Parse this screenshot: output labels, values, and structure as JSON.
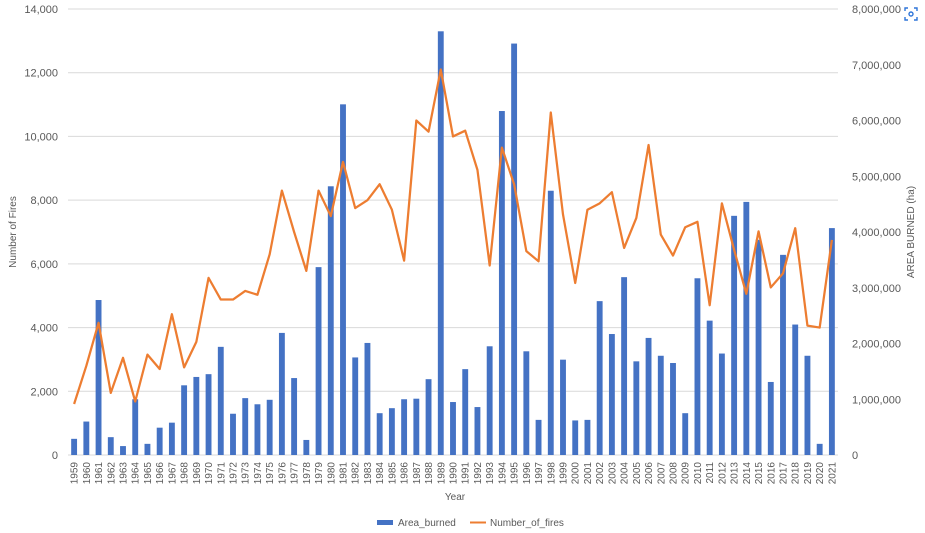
{
  "chart_data": {
    "type": "bar",
    "title": "",
    "xlabel": "Year",
    "ylabel": "Number of Fires",
    "y2label": "AREA BURNED (ha)",
    "ylim": [
      0,
      14000
    ],
    "y2lim": [
      0,
      8000000
    ],
    "yticks": [
      "0",
      "2,000",
      "4,000",
      "6,000",
      "8,000",
      "10,000",
      "12,000",
      "14,000"
    ],
    "y2ticks": [
      "0",
      "1,000,000",
      "2,000,000",
      "3,000,000",
      "4,000,000",
      "5,000,000",
      "6,000,000",
      "7,000,000",
      "8,000,000"
    ],
    "grid": true,
    "legend_position": "bottom",
    "categories": [
      "1959",
      "1960",
      "1961",
      "1962",
      "1963",
      "1964",
      "1965",
      "1966",
      "1967",
      "1968",
      "1969",
      "1970",
      "1971",
      "1972",
      "1973",
      "1974",
      "1975",
      "1976",
      "1977",
      "1978",
      "1979",
      "1980",
      "1981",
      "1982",
      "1983",
      "1984",
      "1985",
      "1986",
      "1987",
      "1988",
      "1989",
      "1990",
      "1991",
      "1992",
      "1993",
      "1994",
      "1995",
      "1996",
      "1997",
      "1998",
      "1999",
      "2000",
      "2001",
      "2002",
      "2003",
      "2004",
      "2005",
      "2006",
      "2007",
      "2008",
      "2009",
      "2010",
      "2011",
      "2012",
      "2013",
      "2014",
      "2015",
      "2016",
      "2017",
      "2018",
      "2019",
      "2020",
      "2021"
    ],
    "series": [
      {
        "name": "Area_burned",
        "type": "bar",
        "axis": "secondary",
        "color": "#4472C4",
        "values": [
          290000,
          600000,
          2780000,
          320000,
          160000,
          1000000,
          200000,
          490000,
          580000,
          1250000,
          1400000,
          1450000,
          1940000,
          740000,
          1020000,
          910000,
          990000,
          2190000,
          1380000,
          270000,
          3370000,
          4820000,
          6290000,
          1750000,
          2010000,
          750000,
          840000,
          1000000,
          1010000,
          1360000,
          7600000,
          950000,
          1540000,
          860000,
          1950000,
          6170000,
          7380000,
          1860000,
          630000,
          4740000,
          1710000,
          620000,
          630000,
          2760000,
          2170000,
          3190000,
          1680000,
          2100000,
          1780000,
          1650000,
          750000,
          3170000,
          2410000,
          1820000,
          4290000,
          4540000,
          3860000,
          1310000,
          3590000,
          2340000,
          1780000,
          200000,
          4070000
        ]
      },
      {
        "name": "Number_of_fires",
        "type": "line",
        "axis": "primary",
        "color": "#ED7D31",
        "values": [
          1600,
          2800,
          4150,
          1950,
          3050,
          1680,
          3150,
          2700,
          4420,
          2750,
          3550,
          5560,
          4880,
          4880,
          5150,
          5030,
          6300,
          8300,
          7000,
          5780,
          8300,
          7500,
          9200,
          7750,
          8000,
          8500,
          7700,
          6100,
          10500,
          10150,
          12100,
          10000,
          10180,
          8950,
          5950,
          9650,
          8500,
          6400,
          6080,
          10750,
          7550,
          5400,
          7700,
          7900,
          8250,
          6500,
          7440,
          9730,
          6920,
          6260,
          7150,
          7320,
          4700,
          7900,
          6440,
          5060,
          7020,
          5260,
          5700,
          7120,
          4060,
          4000,
          6750
        ]
      }
    ]
  },
  "legend": {
    "items": [
      {
        "label": "Area_burned",
        "color": "#4472C4"
      },
      {
        "label": "Number_of_fires",
        "color": "#ED7D31"
      }
    ]
  },
  "corner_button": {
    "icon": "focus-icon",
    "color": "#2E75D9"
  }
}
